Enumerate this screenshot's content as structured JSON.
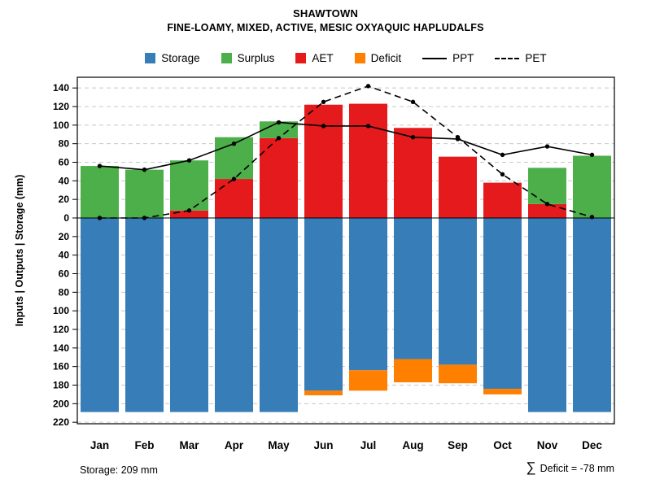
{
  "colors": {
    "storage": "#377EB8",
    "surplus": "#4DAF4A",
    "aet": "#E41A1C",
    "deficit": "#FF7F00",
    "line": "#000000",
    "grid": "#C8C8C8",
    "background": "#FFFFFF"
  },
  "chart_data": {
    "type": "bar+line",
    "title": "SHAWTOWN",
    "subtitle": "FINE-LOAMY, MIXED, ACTIVE, MESIC OXYAQUIC HAPLUDALFS",
    "ylabel": "Inputs | Outputs | Storage   (mm)",
    "xlabel": "",
    "ylim": [
      -225,
      152
    ],
    "grid": true,
    "legend_position": "top",
    "categories": [
      "Jan",
      "Feb",
      "Mar",
      "Apr",
      "May",
      "Jun",
      "Jul",
      "Aug",
      "Sep",
      "Oct",
      "Nov",
      "Dec"
    ],
    "y_ticks": {
      "values": [
        140,
        120,
        100,
        80,
        60,
        40,
        20,
        0,
        -20,
        -40,
        -60,
        -80,
        -100,
        -120,
        -140,
        -160,
        -180,
        -200,
        -220
      ],
      "labels": [
        "140",
        "120",
        "100",
        "80",
        "60",
        "40",
        "20",
        "0",
        "20",
        "40",
        "60",
        "80",
        "100",
        "120",
        "140",
        "160",
        "180",
        "200",
        "220"
      ]
    },
    "series": [
      {
        "name": "Storage",
        "kind": "bar",
        "direction": "down",
        "color": "#377EB8",
        "values": [
          209,
          209,
          209,
          209,
          209,
          186,
          164,
          152,
          158,
          184,
          209,
          209
        ]
      },
      {
        "name": "Deficit",
        "kind": "bar",
        "direction": "down",
        "stacked_below": "Storage",
        "color": "#FF7F00",
        "values": [
          0,
          0,
          0,
          0,
          0,
          5,
          22,
          25,
          20,
          6,
          0,
          0
        ]
      },
      {
        "name": "AET",
        "kind": "bar",
        "direction": "up",
        "color": "#E41A1C",
        "values": [
          0,
          0,
          8,
          42,
          86,
          122,
          123,
          97,
          66,
          38,
          15,
          0
        ]
      },
      {
        "name": "Surplus",
        "kind": "bar",
        "direction": "up",
        "stacked_on": "AET",
        "color": "#4DAF4A",
        "values": [
          56,
          52,
          54,
          45,
          18,
          0,
          0,
          0,
          0,
          0,
          39,
          67
        ]
      },
      {
        "name": "PPT",
        "kind": "line",
        "linestyle": "solid",
        "color": "#000000",
        "values": [
          56,
          52,
          62,
          80,
          103,
          99,
          99,
          87,
          85,
          68,
          77,
          68
        ]
      },
      {
        "name": "PET",
        "kind": "line",
        "linestyle": "dashed",
        "color": "#000000",
        "values": [
          0,
          0,
          8,
          42,
          86,
          125,
          142,
          125,
          87,
          47,
          15,
          1
        ]
      }
    ],
    "legend": [
      {
        "label": "Storage",
        "swatch": "box",
        "color": "#377EB8"
      },
      {
        "label": "Surplus",
        "swatch": "box",
        "color": "#4DAF4A"
      },
      {
        "label": "AET",
        "swatch": "box",
        "color": "#E41A1C"
      },
      {
        "label": "Deficit",
        "swatch": "box",
        "color": "#FF7F00"
      },
      {
        "label": "PPT",
        "swatch": "line-solid",
        "color": "#000000"
      },
      {
        "label": "PET",
        "swatch": "line-dashed",
        "color": "#000000"
      }
    ],
    "annotations": {
      "storage_note": "Storage: 209 mm",
      "deficit_sigma": "∑",
      "deficit_note": "Deficit = -78 mm"
    }
  }
}
